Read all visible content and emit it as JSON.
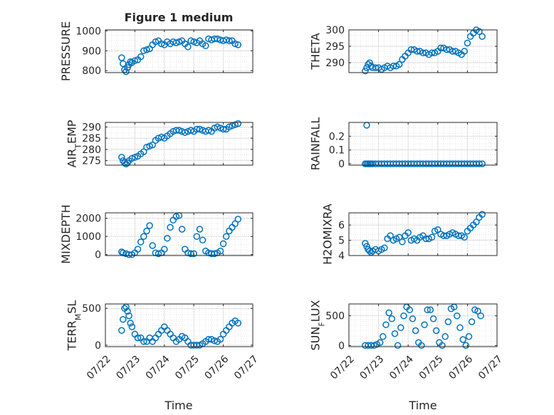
{
  "title": "Figure 1 medium",
  "xlabel": "Time",
  "x_tick_labels": [
    "07/22",
    "07/23",
    "07/24",
    "07/25",
    "07/26",
    "07/27"
  ],
  "colors": {
    "marker": "#0072BD",
    "axis": "#262626",
    "grid": "#DFDFDF"
  },
  "chart_data": [
    {
      "type": "scatter",
      "ylabel": "PRESSURE",
      "ylim": [
        790,
        1005
      ],
      "yticks": [
        800,
        900,
        1000
      ],
      "ytick_labels": [
        "800",
        "900",
        "1000"
      ],
      "xlim": [
        0,
        5
      ],
      "grid": true,
      "x": [
        0.55,
        0.6,
        0.65,
        0.7,
        0.75,
        0.8,
        0.85,
        0.9,
        1.0,
        1.1,
        1.2,
        1.3,
        1.4,
        1.5,
        1.6,
        1.7,
        1.8,
        1.9,
        2.0,
        2.1,
        2.2,
        2.3,
        2.4,
        2.5,
        2.6,
        2.7,
        2.8,
        2.9,
        3.0,
        3.1,
        3.2,
        3.3,
        3.4,
        3.5,
        3.6,
        3.7,
        3.8,
        3.9,
        4.0,
        4.1,
        4.2,
        4.3,
        4.4,
        4.5
      ],
      "y": [
        865,
        835,
        805,
        795,
        815,
        830,
        845,
        840,
        850,
        855,
        870,
        900,
        905,
        910,
        930,
        945,
        950,
        935,
        930,
        945,
        935,
        945,
        940,
        945,
        950,
        935,
        920,
        950,
        945,
        940,
        950,
        935,
        925,
        960,
        955,
        960,
        960,
        955,
        950,
        955,
        950,
        950,
        935,
        930
      ]
    },
    {
      "type": "scatter",
      "ylabel": "THETA",
      "ylim": [
        287,
        300
      ],
      "yticks": [
        290,
        295,
        300
      ],
      "ytick_labels": [
        "290",
        "295",
        "300"
      ],
      "xlim": [
        0,
        5
      ],
      "grid": true,
      "x": [
        0.55,
        0.6,
        0.65,
        0.7,
        0.75,
        0.8,
        0.9,
        1.0,
        1.1,
        1.2,
        1.3,
        1.4,
        1.5,
        1.6,
        1.7,
        1.8,
        1.9,
        2.0,
        2.1,
        2.2,
        2.3,
        2.4,
        2.5,
        2.6,
        2.7,
        2.8,
        2.9,
        3.0,
        3.1,
        3.2,
        3.3,
        3.4,
        3.5,
        3.6,
        3.7,
        3.8,
        3.9,
        4.0,
        4.1,
        4.2,
        4.3,
        4.4,
        4.5
      ],
      "y": [
        287.5,
        288.5,
        289.5,
        290,
        289,
        288.5,
        288.5,
        288.5,
        288,
        288.5,
        289,
        288.5,
        289,
        289,
        289.5,
        291,
        292,
        293,
        294,
        294,
        293.5,
        293.5,
        293,
        293,
        292.5,
        293,
        293,
        293.5,
        294.5,
        294.5,
        294,
        294,
        293.5,
        293.5,
        293,
        292.5,
        293.5,
        296,
        298,
        299,
        300,
        299.5,
        298
      ]
    },
    {
      "type": "scatter",
      "ylabel": "AIR_TEMP",
      "ylim": [
        273,
        292
      ],
      "yticks": [
        275,
        280,
        285,
        290
      ],
      "ytick_labels": [
        "275",
        "280",
        "285",
        "290"
      ],
      "xlim": [
        0,
        5
      ],
      "grid": true,
      "x": [
        0.55,
        0.6,
        0.65,
        0.7,
        0.75,
        0.8,
        0.9,
        1.0,
        1.1,
        1.2,
        1.3,
        1.4,
        1.5,
        1.6,
        1.7,
        1.8,
        1.9,
        2.0,
        2.1,
        2.2,
        2.3,
        2.4,
        2.5,
        2.6,
        2.7,
        2.8,
        2.9,
        3.0,
        3.1,
        3.2,
        3.3,
        3.4,
        3.5,
        3.6,
        3.7,
        3.8,
        3.9,
        4.0,
        4.1,
        4.2,
        4.3,
        4.4,
        4.5
      ],
      "y": [
        276.5,
        275,
        274,
        273.5,
        274,
        275,
        276,
        276.5,
        277,
        278,
        279,
        281,
        281.5,
        282,
        284,
        285,
        285.5,
        285,
        286,
        287,
        288,
        288.5,
        288.5,
        288,
        287.5,
        288,
        288.5,
        288,
        289,
        289,
        288.5,
        288,
        288.5,
        288,
        289.5,
        290,
        289.5,
        289,
        289,
        290,
        290.5,
        291,
        291.5
      ]
    },
    {
      "type": "scatter",
      "ylabel": "RAINFALL",
      "ylim": [
        -0.01,
        0.3
      ],
      "yticks": [
        0,
        0.1,
        0.2
      ],
      "ytick_labels": [
        "0",
        "0.1",
        "0.2"
      ],
      "xlim": [
        0,
        5
      ],
      "grid": true,
      "x": [
        0.55,
        0.6,
        0.65,
        0.7,
        0.75,
        0.8,
        0.9,
        1.0,
        1.1,
        1.2,
        1.3,
        1.4,
        1.5,
        1.6,
        1.7,
        1.8,
        1.9,
        2.0,
        2.1,
        2.2,
        2.3,
        2.4,
        2.5,
        2.6,
        2.7,
        2.8,
        2.9,
        3.0,
        3.1,
        3.2,
        3.3,
        3.4,
        3.5,
        3.6,
        3.7,
        3.8,
        3.9,
        4.0,
        4.1,
        4.2,
        4.3,
        4.4,
        4.5,
        0.6
      ],
      "y": [
        0,
        0,
        0,
        0,
        0,
        0,
        0,
        0,
        0,
        0,
        0,
        0,
        0,
        0,
        0,
        0,
        0,
        0,
        0,
        0,
        0,
        0,
        0,
        0,
        0,
        0,
        0,
        0,
        0,
        0,
        0,
        0,
        0,
        0,
        0,
        0,
        0,
        0,
        0,
        0,
        0,
        0,
        0,
        0.28
      ]
    },
    {
      "type": "scatter",
      "ylabel": "MIXDEPTH",
      "ylim": [
        -50,
        2300
      ],
      "yticks": [
        0,
        1000,
        2000
      ],
      "ytick_labels": [
        "0",
        "1000",
        "2000"
      ],
      "xlim": [
        0,
        5
      ],
      "grid": true,
      "x": [
        0.55,
        0.6,
        0.7,
        0.8,
        0.9,
        1.0,
        1.1,
        1.2,
        1.3,
        1.4,
        1.5,
        1.6,
        1.7,
        1.8,
        1.9,
        2.0,
        2.1,
        2.2,
        2.3,
        2.4,
        2.5,
        2.6,
        2.7,
        2.8,
        2.9,
        3.0,
        3.1,
        3.2,
        3.3,
        3.4,
        3.5,
        3.6,
        3.7,
        3.8,
        3.9,
        4.0,
        4.1,
        4.2,
        4.3,
        4.4,
        4.5
      ],
      "y": [
        150,
        100,
        50,
        0,
        0,
        100,
        300,
        700,
        1000,
        1300,
        1600,
        500,
        100,
        50,
        100,
        300,
        900,
        1500,
        1900,
        2100,
        2150,
        1400,
        300,
        100,
        50,
        50,
        1000,
        1400,
        800,
        200,
        100,
        50,
        50,
        100,
        200,
        600,
        1000,
        1300,
        1500,
        1700,
        1950
      ]
    },
    {
      "type": "scatter",
      "ylabel": "H2OMIXRA",
      "ylim": [
        4,
        6.8
      ],
      "yticks": [
        4,
        5,
        6
      ],
      "ytick_labels": [
        "4",
        "5",
        "6"
      ],
      "xlim": [
        0,
        5
      ],
      "grid": true,
      "x": [
        0.55,
        0.6,
        0.65,
        0.7,
        0.75,
        0.8,
        0.9,
        1.0,
        1.1,
        1.2,
        1.3,
        1.4,
        1.5,
        1.6,
        1.7,
        1.8,
        1.9,
        2.0,
        2.1,
        2.2,
        2.3,
        2.4,
        2.5,
        2.6,
        2.7,
        2.8,
        2.9,
        3.0,
        3.1,
        3.2,
        3.3,
        3.4,
        3.5,
        3.6,
        3.7,
        3.8,
        3.9,
        4.0,
        4.1,
        4.2,
        4.3,
        4.4,
        4.5
      ],
      "y": [
        4.8,
        4.6,
        4.4,
        4.3,
        4.2,
        4.3,
        4.4,
        4.3,
        4.4,
        4.5,
        5.1,
        5.3,
        5.0,
        5.1,
        5.2,
        4.9,
        5.3,
        5.5,
        5.0,
        5.1,
        5.0,
        5.2,
        5.3,
        5.1,
        5.1,
        5.2,
        5.6,
        5.7,
        5.4,
        5.3,
        5.3,
        5.4,
        5.5,
        5.4,
        5.3,
        5.3,
        5.2,
        5.6,
        5.8,
        6.0,
        6.2,
        6.5,
        6.7
      ]
    },
    {
      "type": "scatter",
      "ylabel": "TERR_MSL",
      "ylim": [
        -20,
        560
      ],
      "yticks": [
        0,
        500
      ],
      "ytick_labels": [
        "0",
        "500"
      ],
      "xlim": [
        0,
        5
      ],
      "grid": true,
      "x": [
        0.55,
        0.6,
        0.65,
        0.7,
        0.75,
        0.8,
        0.85,
        0.9,
        1.0,
        1.1,
        1.2,
        1.3,
        1.4,
        1.5,
        1.6,
        1.7,
        1.8,
        1.9,
        2.0,
        2.1,
        2.2,
        2.3,
        2.4,
        2.5,
        2.6,
        2.7,
        2.8,
        2.9,
        3.0,
        3.1,
        3.2,
        3.3,
        3.4,
        3.5,
        3.6,
        3.7,
        3.8,
        3.9,
        4.0,
        4.1,
        4.2,
        4.3,
        4.4,
        4.5
      ],
      "y": [
        200,
        350,
        500,
        520,
        460,
        400,
        300,
        250,
        150,
        100,
        100,
        50,
        50,
        100,
        50,
        100,
        150,
        200,
        250,
        200,
        150,
        100,
        50,
        80,
        120,
        100,
        50,
        0,
        0,
        0,
        0,
        20,
        50,
        80,
        80,
        60,
        50,
        80,
        150,
        200,
        250,
        300,
        330,
        300
      ]
    },
    {
      "type": "scatter",
      "ylabel": "SUN_FLUX",
      "ylim": [
        -20,
        700
      ],
      "yticks": [
        0,
        500
      ],
      "ytick_labels": [
        "0",
        "500"
      ],
      "xlim": [
        0,
        5
      ],
      "grid": true,
      "x": [
        0.55,
        0.65,
        0.75,
        0.85,
        0.95,
        1.05,
        1.15,
        1.25,
        1.35,
        1.45,
        1.55,
        1.65,
        1.75,
        1.85,
        1.95,
        2.05,
        2.15,
        2.25,
        2.35,
        2.45,
        2.55,
        2.65,
        2.75,
        2.85,
        2.95,
        3.05,
        3.15,
        3.25,
        3.35,
        3.45,
        3.55,
        3.65,
        3.75,
        3.85,
        3.95,
        4.05,
        4.15,
        4.25,
        4.35,
        4.45
      ],
      "y": [
        0,
        0,
        0,
        0,
        20,
        50,
        150,
        350,
        550,
        450,
        200,
        0,
        300,
        500,
        650,
        600,
        450,
        250,
        50,
        0,
        350,
        600,
        600,
        450,
        250,
        50,
        0,
        150,
        400,
        620,
        650,
        500,
        300,
        100,
        0,
        150,
        400,
        600,
        580,
        500
      ]
    }
  ]
}
